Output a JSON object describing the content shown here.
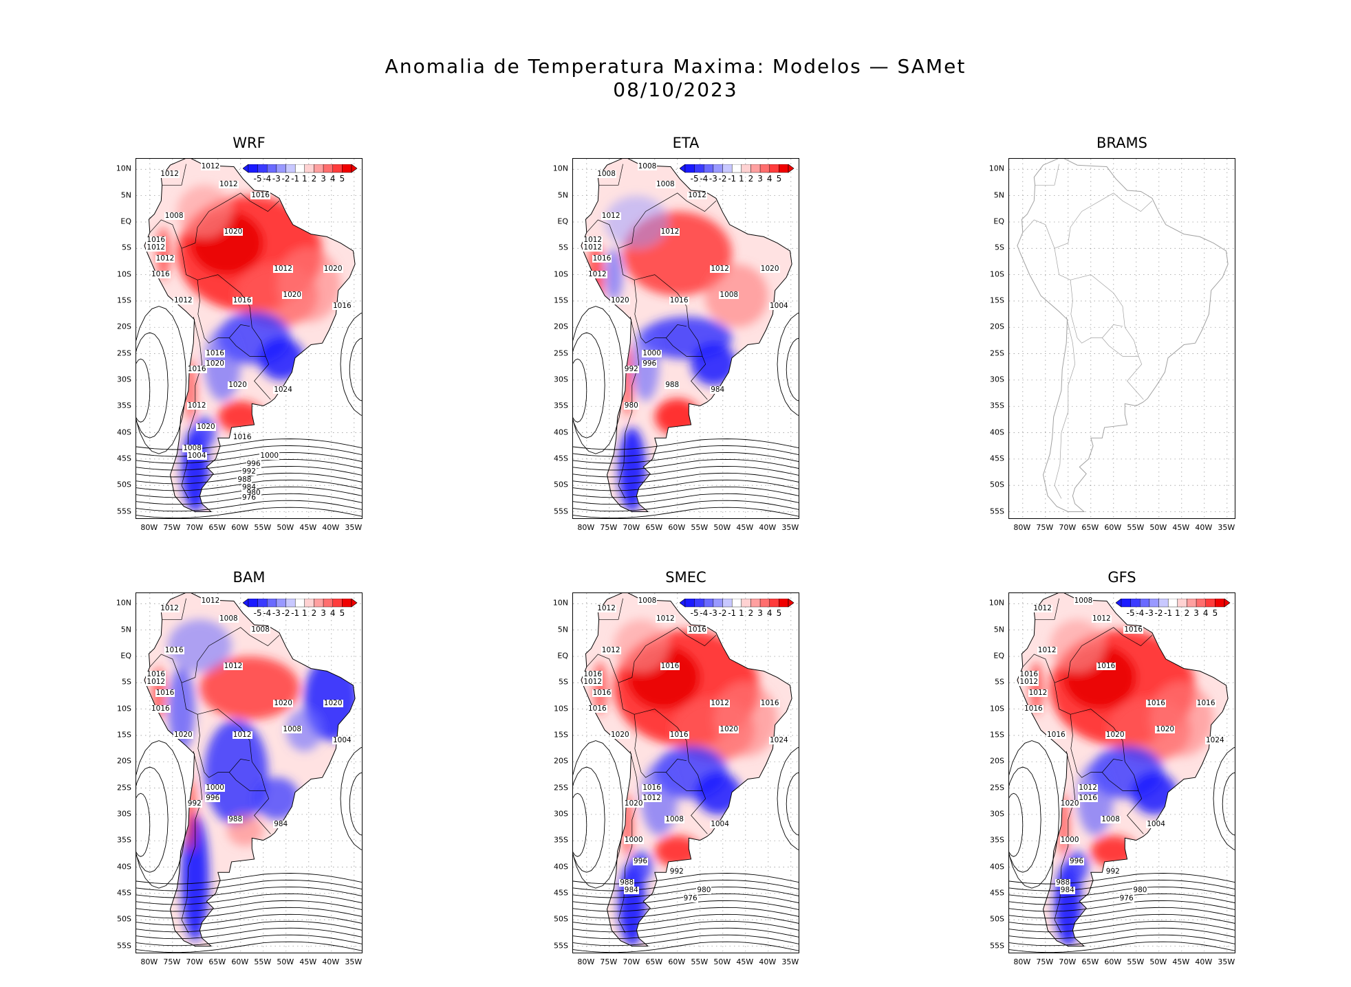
{
  "figure": {
    "title_line1": "Anomalia de Temperatura Maxima: Modelos — SAMet",
    "title_line2": "08/10/2023"
  },
  "axes": {
    "y_ticks": [
      "10N",
      "5N",
      "EQ",
      "5S",
      "10S",
      "15S",
      "20S",
      "25S",
      "30S",
      "35S",
      "40S",
      "45S",
      "50S",
      "55S"
    ],
    "x_ticks": [
      "80W",
      "75W",
      "70W",
      "65W",
      "60W",
      "55W",
      "50W",
      "45W",
      "40W",
      "35W"
    ]
  },
  "colorbar": {
    "ticks": [
      "-5",
      "-4",
      "-3",
      "-2",
      "-1",
      "1",
      "2",
      "3",
      "4",
      "5"
    ],
    "colors": [
      "#1a1aff",
      "#3b3bff",
      "#6a6aff",
      "#9999ff",
      "#c8c8ff",
      "#ffffff",
      "#ffd2d2",
      "#ffa0a0",
      "#ff6e6e",
      "#ff3c3c",
      "#f00000"
    ]
  },
  "panels": [
    {
      "name": "WRF",
      "id": "wrf",
      "field": "warm",
      "contours": [
        "1012",
        "1012",
        "1012",
        "1016",
        "1008",
        "1020",
        "1016",
        "1012",
        "1012",
        "1012",
        "1020",
        "1016",
        "1012",
        "1016",
        "1020",
        "1016",
        "1016",
        "1020",
        "1016",
        "1020",
        "1024",
        "1012",
        "1020",
        "1016",
        "1008",
        "1004",
        "1000",
        "996",
        "992",
        "988",
        "984",
        "980",
        "976"
      ]
    },
    {
      "name": "ETA",
      "id": "eta",
      "field": "mixed",
      "contours": [
        "1008",
        "1008",
        "1008",
        "1012",
        "1012",
        "1012",
        "1012",
        "1012",
        "1016",
        "1012",
        "1020",
        "1012",
        "1020",
        "1016",
        "1008",
        "1004",
        "1000",
        "996",
        "992",
        "988",
        "984",
        "980"
      ]
    },
    {
      "name": "BRAMS",
      "id": "brams",
      "field": "empty",
      "contours": []
    },
    {
      "name": "BAM",
      "id": "bam",
      "field": "cool",
      "contours": [
        "1012",
        "1012",
        "1008",
        "1008",
        "1016",
        "1012",
        "1016",
        "1012",
        "1016",
        "1020",
        "1020",
        "1016",
        "1020",
        "1012",
        "1008",
        "1004",
        "1000",
        "996",
        "992",
        "988",
        "984"
      ]
    },
    {
      "name": "SMEC",
      "id": "smec",
      "field": "warm",
      "contours": [
        "1012",
        "1008",
        "1012",
        "1016",
        "1012",
        "1016",
        "1016",
        "1012",
        "1016",
        "1012",
        "1016",
        "1016",
        "1020",
        "1016",
        "1020",
        "1024",
        "1016",
        "1012",
        "1020",
        "1008",
        "1004",
        "1000",
        "996",
        "992",
        "988",
        "984",
        "980",
        "976"
      ]
    },
    {
      "name": "GFS",
      "id": "gfs",
      "field": "warm",
      "contours": [
        "1012",
        "1008",
        "1012",
        "1016",
        "1012",
        "1016",
        "1016",
        "1012",
        "1012",
        "1016",
        "1016",
        "1016",
        "1016",
        "1020",
        "1020",
        "1024",
        "1012",
        "1016",
        "1020",
        "1008",
        "1004",
        "1000",
        "996",
        "992",
        "988",
        "984",
        "980",
        "976"
      ]
    }
  ]
}
